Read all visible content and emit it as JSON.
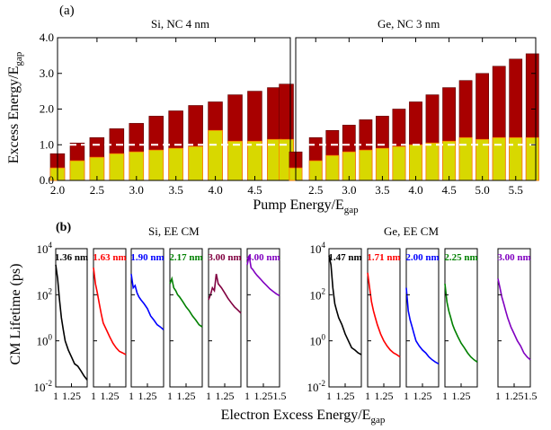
{
  "chart_data": [
    {
      "type": "bar",
      "panel_label": "(a)",
      "ylabel": "Excess Energy/E",
      "ylabel_sub": "gap",
      "xlabel": "Pump Energy/E",
      "xlabel_sub": "gap",
      "ylim": [
        0.0,
        4.0
      ],
      "yticks": [
        "0.0",
        "1.0",
        "2.0",
        "3.0",
        "4.0"
      ],
      "reference_line": 1.0,
      "colors": {
        "total": "#a80000",
        "cm": "#d8d800",
        "bar_edge_total": "#5a0000",
        "bar_edge_cm": "#ff7a00",
        "ref_line": "#ffffff"
      },
      "panels": [
        {
          "title": "Si, NC 4 nm",
          "xlim": [
            2.0,
            4.95
          ],
          "xticks": [
            "2.0",
            "2.5",
            "3.0",
            "3.5",
            "4.0",
            "4.5"
          ],
          "series": [
            {
              "name": "",
              "role": "total",
              "x": [
                2.0,
                2.25,
                2.5,
                2.75,
                3.0,
                3.25,
                3.5,
                3.75,
                4.0,
                4.25,
                4.5,
                4.75,
                4.9
              ],
              "values": [
                0.75,
                1.05,
                1.2,
                1.45,
                1.6,
                1.8,
                1.95,
                2.1,
                2.2,
                2.4,
                2.5,
                2.6,
                2.7
              ]
            },
            {
              "name": "",
              "role": "cm",
              "x": [
                2.0,
                2.25,
                2.5,
                2.75,
                3.0,
                3.25,
                3.5,
                3.75,
                4.0,
                4.25,
                4.5,
                4.75,
                4.9
              ],
              "values": [
                0.35,
                0.55,
                0.65,
                0.75,
                0.8,
                0.85,
                0.9,
                0.95,
                1.4,
                1.1,
                1.1,
                1.15,
                1.15
              ]
            }
          ]
        },
        {
          "title": "Ge, NC 3 nm",
          "xlim": [
            2.2,
            5.8
          ],
          "xticks": [
            "2.5",
            "3.0",
            "3.5",
            "4.0",
            "4.5",
            "5.0",
            "5.5"
          ],
          "series": [
            {
              "name": "",
              "role": "total",
              "x": [
                2.2,
                2.5,
                2.75,
                3.0,
                3.25,
                3.5,
                3.75,
                4.0,
                4.25,
                4.5,
                4.75,
                5.0,
                5.25,
                5.5,
                5.75
              ],
              "values": [
                0.8,
                1.2,
                1.4,
                1.55,
                1.7,
                1.8,
                2.0,
                2.2,
                2.4,
                2.6,
                2.8,
                3.0,
                3.2,
                3.4,
                3.55
              ]
            },
            {
              "name": "",
              "role": "cm",
              "x": [
                2.2,
                2.5,
                2.75,
                3.0,
                3.25,
                3.5,
                3.75,
                4.0,
                4.25,
                4.5,
                4.75,
                5.0,
                5.25,
                5.5,
                5.75
              ],
              "values": [
                0.35,
                0.55,
                0.7,
                0.8,
                0.85,
                0.9,
                0.95,
                1.0,
                1.05,
                1.1,
                1.2,
                1.15,
                1.2,
                1.2,
                1.2
              ]
            }
          ]
        }
      ]
    },
    {
      "type": "line",
      "panel_label": "(b)",
      "ylabel": "CM Lifetime (ps)",
      "xlabel": "Electron Excess Energy/E",
      "xlabel_sub": "gap",
      "yscale": "log",
      "ylim": [
        0.01,
        10000
      ],
      "yticks": [
        {
          "base": "10",
          "exp": "-2"
        },
        {
          "base": "10",
          "exp": "0"
        },
        {
          "base": "10",
          "exp": "2"
        },
        {
          "base": "10",
          "exp": "4"
        }
      ],
      "xlim": [
        1.0,
        1.5
      ],
      "groups": [
        {
          "title": "Si, EE CM",
          "xticks_first": [
            "1",
            "1.25"
          ],
          "xticks_last": [
            "1",
            "1.25",
            "1.5"
          ],
          "subpanels": [
            {
              "label": "1.36 nm",
              "color": "#000000",
              "x": [
                1.0,
                1.03,
                1.06,
                1.09,
                1.12,
                1.15,
                1.2,
                1.25,
                1.3,
                1.35,
                1.4,
                1.45,
                1.5
              ],
              "y": [
                2000,
                500,
                60,
                10,
                3,
                1,
                0.4,
                0.2,
                0.1,
                0.08,
                0.05,
                0.03,
                0.02
              ]
            },
            {
              "label": "1.63 nm",
              "color": "#ff0000",
              "x": [
                1.0,
                1.03,
                1.06,
                1.09,
                1.12,
                1.15,
                1.2,
                1.25,
                1.3,
                1.35,
                1.4,
                1.45,
                1.5
              ],
              "y": [
                1500,
                300,
                120,
                40,
                15,
                6,
                3,
                1.5,
                0.8,
                0.5,
                0.35,
                0.3,
                0.25
              ]
            },
            {
              "label": "1.90 nm",
              "color": "#0000ff",
              "x": [
                1.0,
                1.03,
                1.06,
                1.09,
                1.12,
                1.15,
                1.2,
                1.25,
                1.3,
                1.35,
                1.4,
                1.45,
                1.5
              ],
              "y": [
                800,
                200,
                250,
                120,
                80,
                60,
                40,
                25,
                12,
                8,
                5,
                4,
                3
              ]
            },
            {
              "label": "2.17 nm",
              "color": "#008000",
              "x": [
                1.0,
                1.03,
                1.06,
                1.09,
                1.12,
                1.15,
                1.2,
                1.25,
                1.3,
                1.35,
                1.4,
                1.45,
                1.5
              ],
              "y": [
                300,
                500,
                200,
                150,
                100,
                80,
                50,
                30,
                20,
                12,
                8,
                5,
                4
              ]
            },
            {
              "label": "3.00 nm",
              "color": "#800040",
              "x": [
                1.0,
                1.03,
                1.06,
                1.09,
                1.12,
                1.15,
                1.2,
                1.25,
                1.3,
                1.35,
                1.4,
                1.45,
                1.5
              ],
              "y": [
                60,
                100,
                200,
                150,
                800,
                300,
                200,
                120,
                70,
                45,
                30,
                22,
                16
              ]
            },
            {
              "label": "4.00 nm",
              "color": "#8000c0",
              "x": [
                1.0,
                1.03,
                1.06,
                1.09,
                1.12,
                1.15,
                1.2,
                1.25,
                1.3,
                1.35,
                1.4,
                1.45,
                1.5
              ],
              "y": [
                2000,
                5000,
                1500,
                1200,
                900,
                700,
                500,
                350,
                250,
                180,
                140,
                110,
                90
              ]
            }
          ]
        },
        {
          "title": "Ge, EE CM",
          "xticks_first": [
            "1",
            "1.25"
          ],
          "xticks_last": [
            "1",
            "1.25",
            "1.5"
          ],
          "subpanels": [
            {
              "label": "1.47 nm",
              "color": "#000000",
              "x": [
                1.0,
                1.03,
                1.06,
                1.09,
                1.12,
                1.15,
                1.2,
                1.25,
                1.3,
                1.35,
                1.4,
                1.45,
                1.5
              ],
              "y": [
                5000,
                2000,
                200,
                40,
                20,
                10,
                5,
                2,
                1,
                0.5,
                0.4,
                0.3,
                0.25
              ]
            },
            {
              "label": "1.71 nm",
              "color": "#ff0000",
              "x": [
                1.0,
                1.03,
                1.06,
                1.09,
                1.12,
                1.15,
                1.2,
                1.25,
                1.3,
                1.35,
                1.4,
                1.45,
                1.5
              ],
              "y": [
                900,
                200,
                50,
                20,
                10,
                5,
                2,
                1,
                0.6,
                0.4,
                0.3,
                0.25,
                0.2
              ]
            },
            {
              "label": "2.00 nm",
              "color": "#0000ff",
              "x": [
                1.0,
                1.03,
                1.06,
                1.09,
                1.12,
                1.15,
                1.2,
                1.25,
                1.3,
                1.35,
                1.4,
                1.45,
                1.5
              ],
              "y": [
                200,
                20,
                8,
                4,
                2,
                1,
                0.6,
                0.4,
                0.3,
                0.2,
                0.15,
                0.12,
                0.1
              ]
            },
            {
              "label": "2.25 nm",
              "color": "#008000",
              "x": [
                1.0,
                1.03,
                1.06,
                1.09,
                1.12,
                1.15,
                1.2,
                1.25,
                1.3,
                1.35,
                1.4,
                1.45,
                1.5
              ],
              "y": [
                300,
                50,
                20,
                10,
                5,
                3,
                1.5,
                0.8,
                0.5,
                0.3,
                0.2,
                0.15,
                0.12
              ]
            },
            {
              "label": "3.00 nm",
              "color": "#8000c0",
              "x": [
                1.0,
                1.03,
                1.06,
                1.09,
                1.12,
                1.15,
                1.2,
                1.25,
                1.3,
                1.35,
                1.4,
                1.45,
                1.5
              ],
              "y": [
                500,
                200,
                80,
                40,
                20,
                10,
                4,
                2,
                1,
                0.6,
                0.3,
                0.2,
                0.15
              ]
            }
          ]
        }
      ]
    }
  ]
}
